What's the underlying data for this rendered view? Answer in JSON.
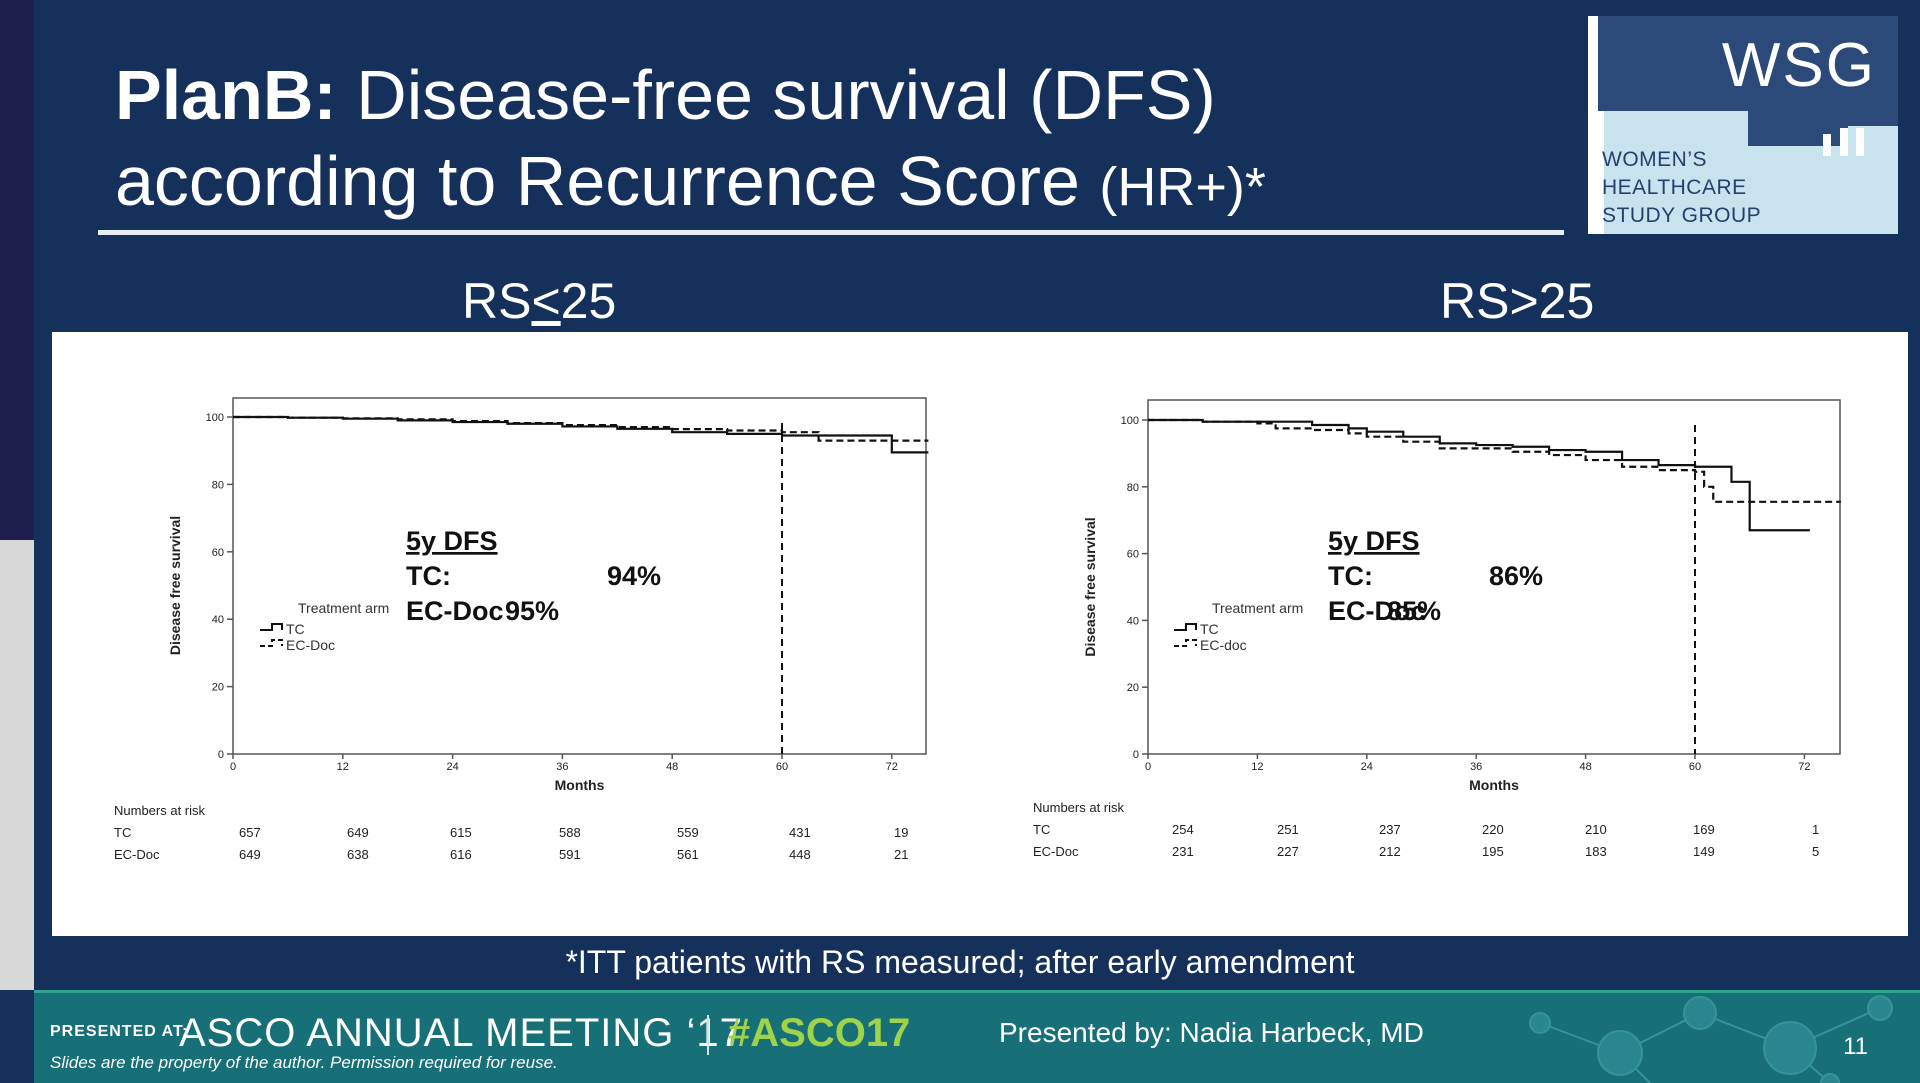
{
  "slide": {
    "title_bold": "PlanB:",
    "title_rest": " Disease-free survival (DFS)",
    "title_line2": "according to Recurrence Score ",
    "title_suffix": "(HR+)*",
    "footnote": "*ITT patients with RS measured; after early amendment",
    "number": "11"
  },
  "logo": {
    "abbr": "WSG",
    "line1": "WOMEN’S",
    "line2": "HEALTHCARE",
    "line3": "STUDY GROUP"
  },
  "footer": {
    "presented_at": "PRESENTED AT:",
    "meeting": "ASCO ANNUAL MEETING ‘17",
    "hashtag": "#ASCO17",
    "presenter": "Presented by: Nadia Harbeck, MD",
    "disclaimer": "Slides are the property of the author. Permission required for reuse."
  },
  "colors": {
    "background": "#15305a",
    "footer": "#176f77",
    "hashtag": "#9fd34a",
    "logo_dark": "#2b4a79",
    "logo_light": "#c9e3ee"
  },
  "chart_data": [
    {
      "type": "line",
      "panel_title_pre": "RS",
      "panel_title_under": "<",
      "panel_title_post": "25",
      "xlabel": "Months",
      "ylabel": "Disease free survival",
      "xlim": [
        0,
        76
      ],
      "ylim": [
        0,
        100
      ],
      "xticks": [
        0,
        12,
        24,
        36,
        48,
        60,
        72
      ],
      "yticks": [
        0,
        20,
        40,
        60,
        80,
        100
      ],
      "legend_title": "Treatment arm",
      "legend_position": "bottom-left",
      "reference_line_x": 60,
      "series": [
        {
          "name": "TC",
          "style": "solid",
          "x": [
            0,
            6,
            12,
            18,
            24,
            30,
            36,
            42,
            48,
            54,
            60,
            66,
            72,
            76
          ],
          "y": [
            100,
            99.8,
            99.5,
            99,
            98.5,
            98,
            97.2,
            96.5,
            95.5,
            95,
            94.5,
            94.5,
            89.5,
            89.5
          ]
        },
        {
          "name": "EC-Doc",
          "style": "dashed",
          "x": [
            0,
            6,
            12,
            18,
            24,
            30,
            36,
            42,
            48,
            54,
            60,
            64,
            76
          ],
          "y": [
            100,
            99.8,
            99.6,
            99.3,
            98.8,
            98.2,
            97.6,
            97,
            96.4,
            96,
            95.5,
            93,
            93
          ]
        }
      ],
      "annotation": {
        "heading": "5y DFS",
        "rows": [
          {
            "label": "TC:",
            "value": "94%"
          },
          {
            "label": "EC-Doc",
            "value": "95%"
          }
        ]
      },
      "risk_table": {
        "title": "Numbers at risk",
        "rows": [
          {
            "label": "TC",
            "values": [
              "657",
              "649",
              "615",
              "588",
              "559",
              "431",
              "19"
            ]
          },
          {
            "label": "EC-Doc",
            "values": [
              "649",
              "638",
              "616",
              "591",
              "561",
              "448",
              "21"
            ]
          }
        ]
      }
    },
    {
      "type": "line",
      "panel_title_pre": "RS>25",
      "panel_title_under": "",
      "panel_title_post": "",
      "xlabel": "Months",
      "ylabel": "Disease free survival",
      "xlim": [
        0,
        76
      ],
      "ylim": [
        0,
        100
      ],
      "xticks": [
        0,
        12,
        24,
        36,
        48,
        60,
        72
      ],
      "yticks": [
        0,
        20,
        40,
        60,
        80,
        100
      ],
      "legend_title": "Treatment arm",
      "legend_position": "bottom-left",
      "reference_line_x": 60,
      "series": [
        {
          "name": "TC",
          "style": "solid",
          "x": [
            0,
            6,
            12,
            18,
            22,
            24,
            28,
            32,
            36,
            40,
            44,
            48,
            52,
            56,
            60,
            64,
            66,
            72.6
          ],
          "y": [
            100,
            99.5,
            99.5,
            98.5,
            97.5,
            96.5,
            95,
            93,
            92.5,
            92,
            91,
            90.5,
            88,
            86.5,
            86,
            81.5,
            67,
            67
          ]
        },
        {
          "name": "EC-doc",
          "style": "dashed",
          "x": [
            0,
            6,
            12,
            14,
            18,
            22,
            24,
            28,
            32,
            36,
            40,
            44,
            48,
            52,
            56,
            60,
            61,
            62,
            76
          ],
          "y": [
            100,
            99.5,
            99,
            97.5,
            97,
            96,
            95,
            93.5,
            91.5,
            91.5,
            90.5,
            89.5,
            88,
            86,
            85,
            84.5,
            80,
            75.5,
            75.5
          ]
        }
      ],
      "annotation": {
        "heading": "5y DFS",
        "rows": [
          {
            "label": "TC:",
            "value": "86%"
          },
          {
            "label": "EC-Doc",
            "value": "85%"
          }
        ]
      },
      "risk_table": {
        "title": "Numbers at risk",
        "rows": [
          {
            "label": "TC",
            "values": [
              "254",
              "251",
              "237",
              "220",
              "210",
              "169",
              "1"
            ]
          },
          {
            "label": "EC-Doc",
            "values": [
              "231",
              "227",
              "212",
              "195",
              "183",
              "149",
              "5"
            ]
          }
        ]
      }
    }
  ]
}
